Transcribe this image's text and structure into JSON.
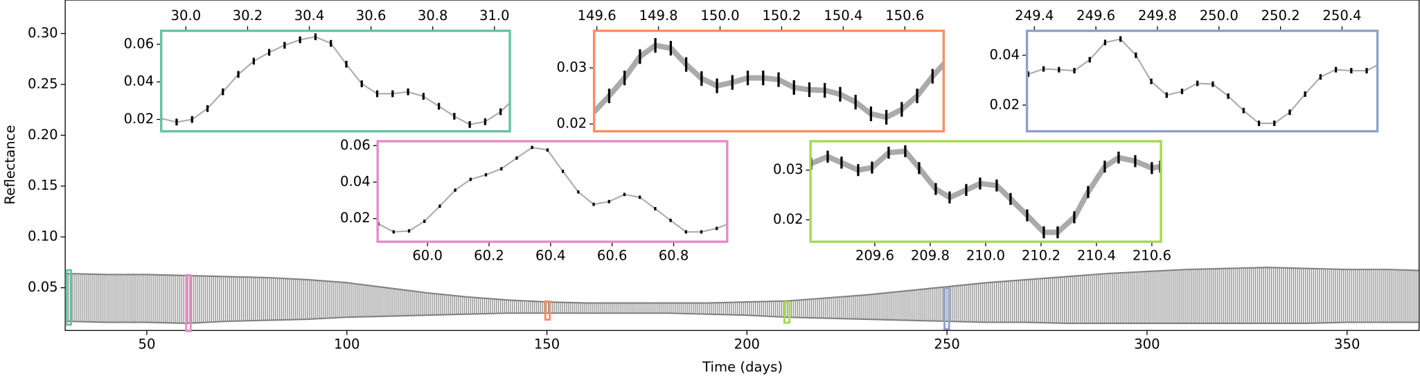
{
  "chart_data": [
    {
      "type": "band",
      "xlabel": "Time (days)",
      "ylabel": "Reflectance",
      "color": "#808080",
      "xlim": [
        29.6,
        368
      ],
      "ylim": [
        0.008,
        0.333
      ],
      "xticks": [
        50,
        100,
        150,
        200,
        250,
        300,
        350
      ],
      "yticks": [
        0.05,
        {
          "value": 0.1,
          "label": "0.10"
        },
        0.15,
        {
          "value": 0.2,
          "label": "0.20"
        },
        0.25,
        {
          "value": 0.3,
          "label": "0.30"
        }
      ],
      "x": [
        30,
        40,
        50,
        60,
        70,
        80,
        90,
        100,
        110,
        120,
        130,
        140,
        150,
        160,
        170,
        180,
        190,
        200,
        210,
        220,
        230,
        240,
        250,
        260,
        270,
        280,
        290,
        300,
        310,
        320,
        330,
        340,
        350,
        360,
        368
      ],
      "series": [
        {
          "values": [
            0.064,
            0.063,
            0.063,
            0.062,
            0.061,
            0.06,
            0.058,
            0.055,
            0.05,
            0.045,
            0.041,
            0.038,
            0.036,
            0.035,
            0.035,
            0.035,
            0.035,
            0.036,
            0.037,
            0.04,
            0.043,
            0.047,
            0.051,
            0.055,
            0.058,
            0.061,
            0.064,
            0.066,
            0.068,
            0.069,
            0.07,
            0.069,
            0.068,
            0.068,
            0.067
          ]
        },
        {
          "values": [
            0.017,
            0.016,
            0.016,
            0.015,
            0.017,
            0.018,
            0.019,
            0.021,
            0.022,
            0.023,
            0.024,
            0.025,
            0.025,
            0.025,
            0.025,
            0.025,
            0.024,
            0.023,
            0.021,
            0.02,
            0.019,
            0.018,
            0.017,
            0.016,
            0.016,
            0.015,
            0.015,
            0.015,
            0.015,
            0.015,
            0.015,
            0.015,
            0.016,
            0.016,
            0.016
          ]
        }
      ]
    },
    {
      "type": "line",
      "color": "#66c2a5",
      "xaxis": "top",
      "xlim": [
        29.92,
        31.05
      ],
      "ylim": [
        0.0137,
        0.0672
      ],
      "xticks": [
        {
          "value": 30.0,
          "label": "30.0"
        },
        30.2,
        30.4,
        30.6,
        30.8,
        {
          "value": 31.0,
          "label": "31.0"
        }
      ],
      "yticks": [
        0.02,
        0.04,
        0.06
      ],
      "x": [
        29.92,
        29.97,
        30.02,
        30.07,
        30.12,
        30.17,
        30.22,
        30.27,
        30.32,
        30.37,
        30.42,
        30.47,
        30.52,
        30.57,
        30.62,
        30.67,
        30.72,
        30.77,
        30.82,
        30.87,
        30.92,
        30.97,
        31.02,
        31.07
      ],
      "values": [
        0.0205,
        0.0186,
        0.02,
        0.0258,
        0.0347,
        0.044,
        0.051,
        0.0557,
        0.0595,
        0.0624,
        0.064,
        0.0605,
        0.0494,
        0.039,
        0.0337,
        0.0337,
        0.0347,
        0.0323,
        0.027,
        0.0217,
        0.0173,
        0.0188,
        0.0241,
        0.032
      ],
      "errors": [
        0.0018,
        0.0018,
        0.0018,
        0.0018,
        0.0018,
        0.0018,
        0.0018,
        0.0018,
        0.0018,
        0.0018,
        0.0018,
        0.0018,
        0.0018,
        0.0018,
        0.0018,
        0.0018,
        0.0018,
        0.0018,
        0.0018,
        0.0018,
        0.0018,
        0.0018,
        0.0018,
        0.0018
      ]
    },
    {
      "type": "line",
      "color": "#fc8d62",
      "xaxis": "top",
      "xlim": [
        149.591,
        150.726
      ],
      "ylim": [
        0.0187,
        0.0366
      ],
      "xticks": [
        149.6,
        149.8,
        {
          "value": 150.0,
          "label": "150.0"
        },
        150.2,
        150.4,
        150.6
      ],
      "yticks": [
        0.02,
        0.03
      ],
      "x": [
        149.59,
        149.64,
        149.69,
        149.74,
        149.79,
        149.84,
        149.89,
        149.94,
        149.99,
        150.04,
        150.09,
        150.14,
        150.19,
        150.24,
        150.29,
        150.34,
        150.39,
        150.44,
        150.49,
        150.54,
        150.59,
        150.64,
        150.69,
        150.74
      ],
      "values": [
        0.0221,
        0.025,
        0.0282,
        0.032,
        0.034,
        0.0335,
        0.0306,
        0.0281,
        0.0268,
        0.0274,
        0.0282,
        0.0282,
        0.0279,
        0.0265,
        0.0261,
        0.026,
        0.0253,
        0.0239,
        0.0218,
        0.0212,
        0.0226,
        0.025,
        0.0285,
        0.0315
      ],
      "errors": [
        0.0013,
        0.0013,
        0.0013,
        0.0013,
        0.0013,
        0.0013,
        0.0013,
        0.0013,
        0.0013,
        0.0013,
        0.0013,
        0.0013,
        0.0013,
        0.0013,
        0.0013,
        0.0013,
        0.0013,
        0.0013,
        0.0013,
        0.0013,
        0.0013,
        0.0013,
        0.0013,
        0.0013
      ]
    },
    {
      "type": "line",
      "color": "#8da0cb",
      "xaxis": "top",
      "xlim": [
        249.376,
        250.515
      ],
      "ylim": [
        0.0095,
        0.0498
      ],
      "xticks": [
        249.4,
        249.6,
        249.8,
        {
          "value": 250.0,
          "label": "250.0"
        },
        250.2,
        250.4
      ],
      "yticks": [
        0.02,
        0.04
      ],
      "x": [
        249.38,
        249.43,
        249.48,
        249.53,
        249.58,
        249.63,
        249.68,
        249.73,
        249.78,
        249.83,
        249.88,
        249.93,
        249.98,
        250.03,
        250.08,
        250.13,
        250.18,
        250.23,
        250.28,
        250.33,
        250.38,
        250.43,
        250.48,
        250.53
      ],
      "values": [
        0.0324,
        0.0345,
        0.0342,
        0.0338,
        0.0382,
        0.0451,
        0.0465,
        0.04,
        0.0295,
        0.024,
        0.0255,
        0.0287,
        0.0284,
        0.0236,
        0.0178,
        0.0127,
        0.0127,
        0.0171,
        0.0244,
        0.0313,
        0.0342,
        0.0338,
        0.0338,
        0.0371
      ],
      "errors": [
        0.0011,
        0.0011,
        0.0011,
        0.0011,
        0.0011,
        0.0011,
        0.0011,
        0.0011,
        0.0011,
        0.0011,
        0.0011,
        0.0011,
        0.0011,
        0.0011,
        0.0011,
        0.0011,
        0.0011,
        0.0011,
        0.0011,
        0.0011,
        0.0011,
        0.0011,
        0.0011,
        0.0011
      ]
    },
    {
      "type": "line",
      "color": "#e78ac3",
      "xaxis": "bottom",
      "xlim": [
        59.838,
        60.974
      ],
      "ylim": [
        0.0073,
        0.0624
      ],
      "xticks": [
        {
          "value": 60.0,
          "label": "60.0"
        },
        60.2,
        60.4,
        60.6,
        60.8
      ],
      "yticks": [
        0.02,
        0.04,
        0.06
      ],
      "x": [
        59.84,
        59.89,
        59.94,
        59.99,
        60.04,
        60.09,
        60.14,
        60.19,
        60.24,
        60.29,
        60.34,
        60.39,
        60.44,
        60.49,
        60.54,
        60.59,
        60.64,
        60.69,
        60.74,
        60.79,
        60.84,
        60.89,
        60.94,
        60.99
      ],
      "values": [
        0.0171,
        0.0127,
        0.0132,
        0.0185,
        0.0268,
        0.0356,
        0.0415,
        0.044,
        0.0473,
        0.0532,
        0.059,
        0.0576,
        0.0459,
        0.0346,
        0.0278,
        0.0293,
        0.0332,
        0.0317,
        0.0254,
        0.019,
        0.0127,
        0.0127,
        0.0146,
        0.018
      ],
      "errors": [
        0.0009,
        0.0009,
        0.0009,
        0.0009,
        0.0009,
        0.0009,
        0.0009,
        0.0009,
        0.0009,
        0.0009,
        0.0009,
        0.0009,
        0.0009,
        0.0009,
        0.0009,
        0.0009,
        0.0009,
        0.0009,
        0.0009,
        0.0009,
        0.0009,
        0.0009,
        0.0009,
        0.0009
      ]
    },
    {
      "type": "line",
      "color": "#a6d854",
      "xaxis": "bottom",
      "xlim": [
        209.368,
        210.633
      ],
      "ylim": [
        0.0156,
        0.0358
      ],
      "xticks": [
        209.6,
        209.8,
        {
          "value": 210.0,
          "label": "210.0"
        },
        210.2,
        210.4,
        210.6
      ],
      "yticks": [
        0.02,
        0.03
      ],
      "x": [
        209.37,
        209.43,
        209.48,
        209.54,
        209.59,
        209.65,
        209.71,
        209.76,
        209.82,
        209.87,
        209.93,
        209.98,
        210.04,
        210.09,
        210.15,
        210.21,
        210.26,
        210.32,
        210.37,
        210.43,
        210.48,
        210.54,
        210.6,
        210.63
      ],
      "values": [
        0.0313,
        0.0327,
        0.0315,
        0.03,
        0.0305,
        0.0335,
        0.0338,
        0.0304,
        0.0262,
        0.0245,
        0.026,
        0.0273,
        0.0269,
        0.0242,
        0.0209,
        0.0175,
        0.0175,
        0.0205,
        0.0256,
        0.0307,
        0.0325,
        0.0318,
        0.0304,
        0.0307
      ],
      "errors": [
        0.0012,
        0.0012,
        0.0012,
        0.0012,
        0.0012,
        0.0012,
        0.0012,
        0.0012,
        0.0012,
        0.0012,
        0.0012,
        0.0012,
        0.0012,
        0.0012,
        0.0012,
        0.0012,
        0.0012,
        0.0012,
        0.0012,
        0.0012,
        0.0012,
        0.0012,
        0.0012,
        0.0012
      ]
    }
  ]
}
